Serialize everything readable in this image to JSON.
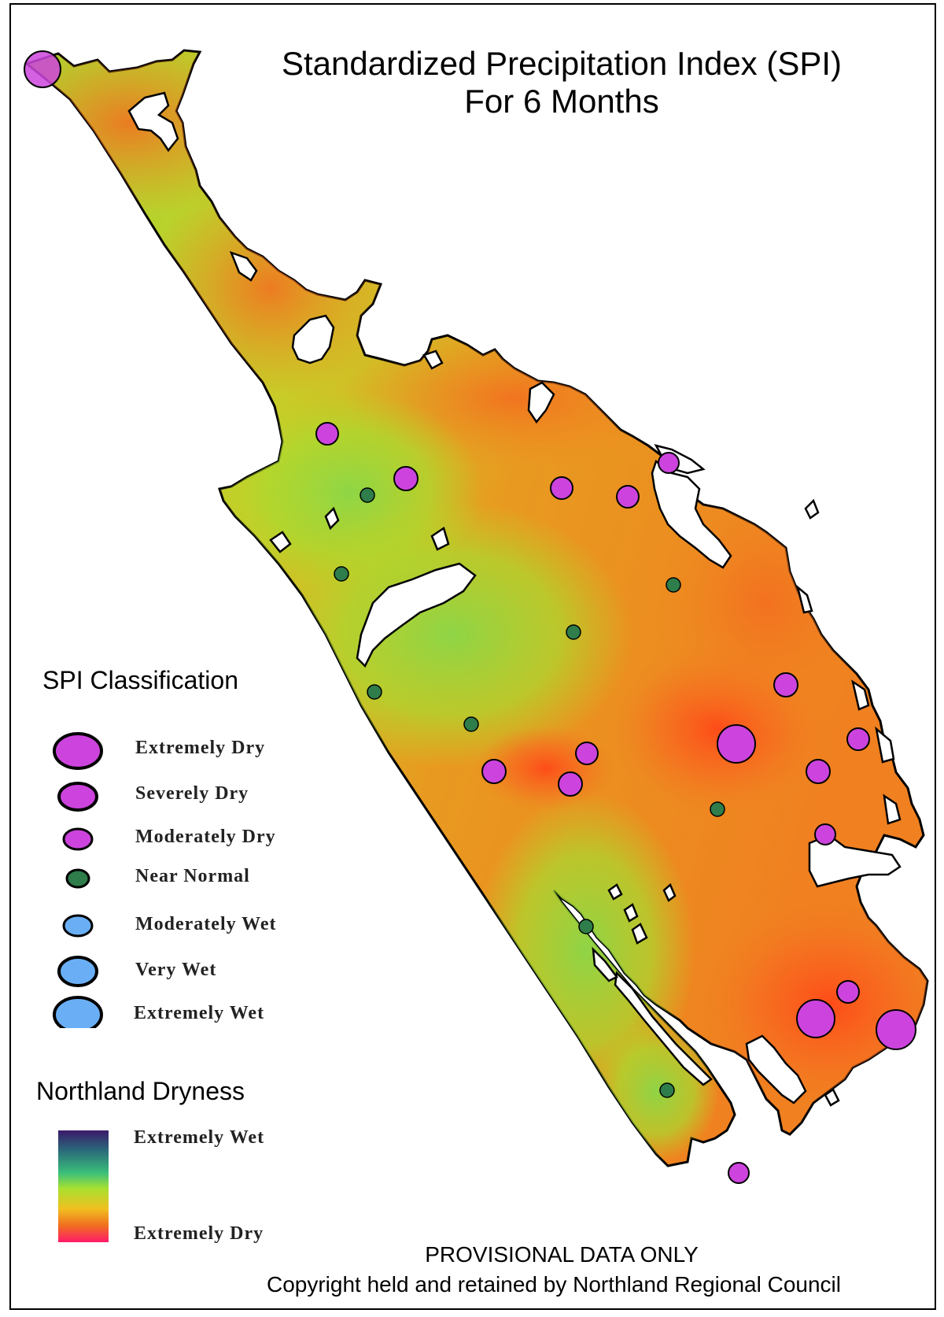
{
  "map": {
    "title_line1": "Standardized Precipitation Index (SPI)",
    "title_line2": "For 6 Months",
    "region": "Northland"
  },
  "spi_legend": {
    "heading": "SPI Classification",
    "items": [
      {
        "label": "Extremely Dry",
        "color": "#cc44dd"
      },
      {
        "label": "Severely Dry",
        "color": "#cc44dd"
      },
      {
        "label": "Moderately Dry",
        "color": "#cc44dd"
      },
      {
        "label": "Near Normal",
        "color": "#2e7d4a"
      },
      {
        "label": "Moderately Wet",
        "color": "#6aaff5"
      },
      {
        "label": "Very Wet",
        "color": "#6aaff5"
      },
      {
        "label": "Extremely Wet",
        "color": "#6aaff5"
      }
    ]
  },
  "dryness_legend": {
    "heading": "Northland Dryness",
    "top_label": "Extremely Wet",
    "bottom_label": "Extremely Dry",
    "gradient_colors": [
      "#3a1a6a",
      "#2a6a7a",
      "#3ac07a",
      "#a8e030",
      "#f0c020",
      "#f07020",
      "#ff1a6a"
    ]
  },
  "footer": {
    "line1": "PROVISIONAL DATA ONLY",
    "line2": "Copyright held and retained by Northland Regional Council"
  },
  "colors": {
    "dry_marker": "#cc44dd",
    "normal_marker": "#2e7d4a",
    "wet_marker": "#6aaff5"
  }
}
